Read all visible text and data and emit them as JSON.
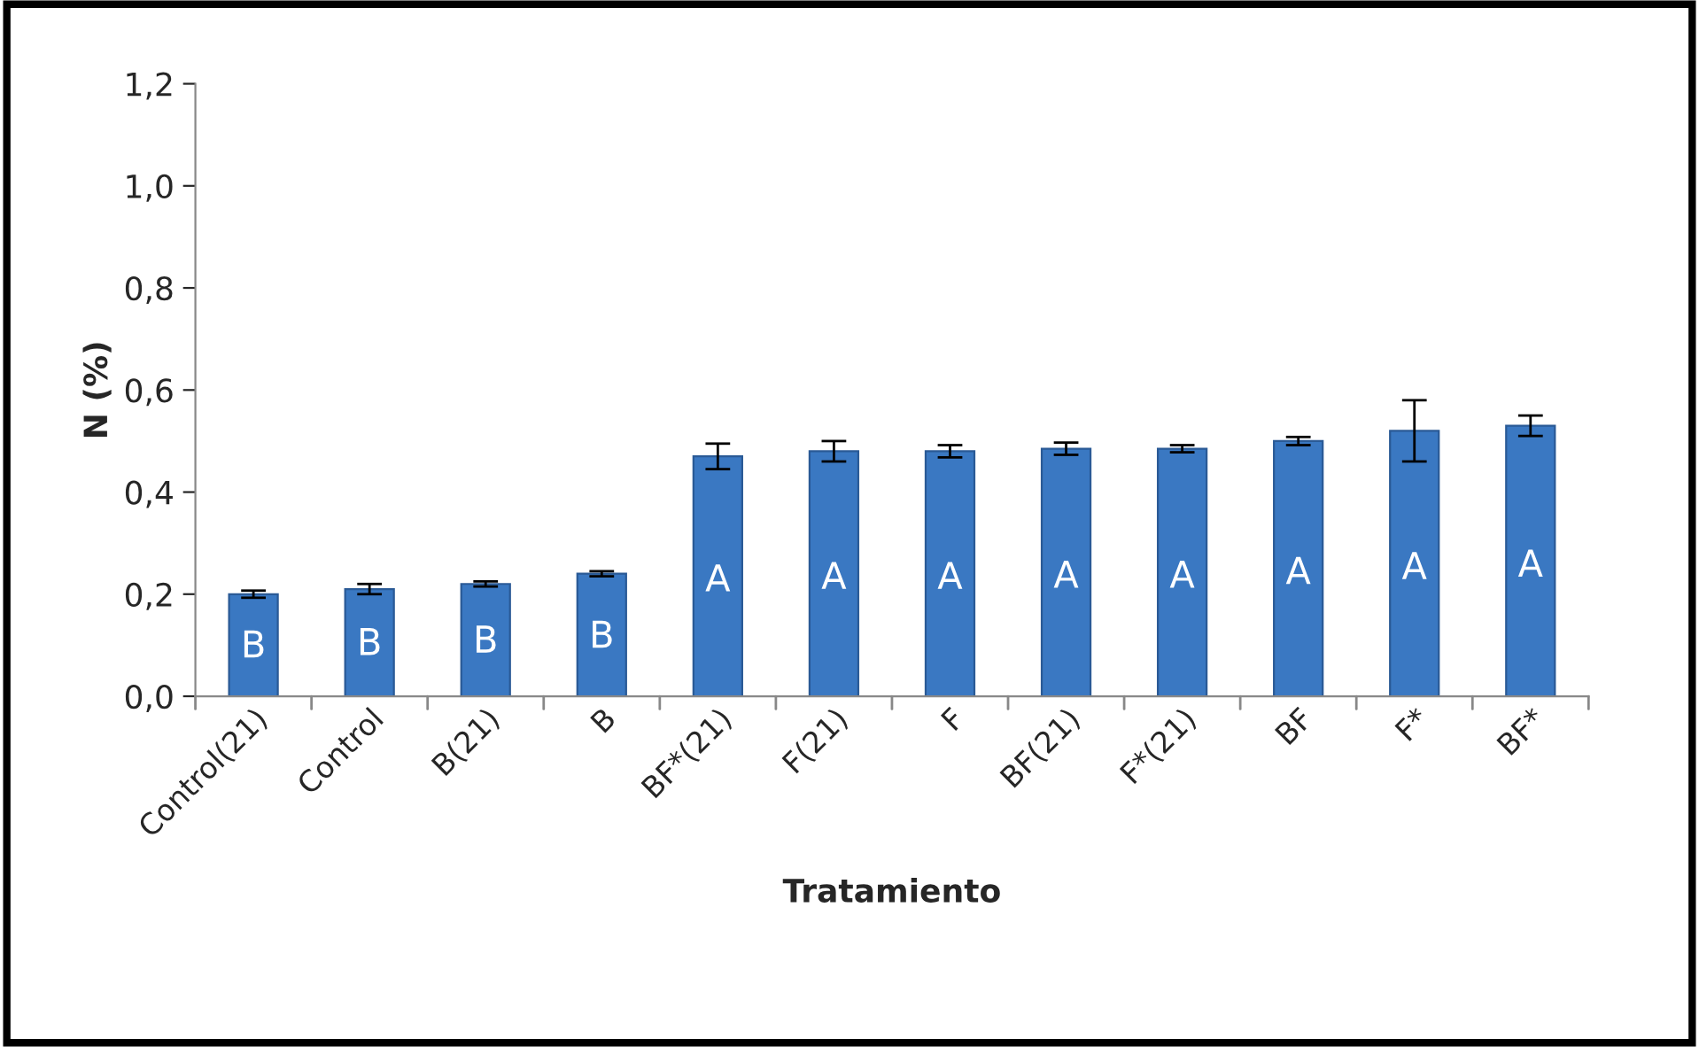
{
  "chart_data": {
    "type": "bar",
    "xlabel": "Tratamiento",
    "ylabel": "N (%)",
    "categories": [
      "Control(21)",
      "Control",
      "B(21)",
      "B",
      "BF*(21)",
      "F(21)",
      "F",
      "BF(21)",
      "F*(21)",
      "BF",
      "F*",
      "BF*"
    ],
    "series": [
      {
        "color": "#3a78c2",
        "values": [
          0.2,
          0.21,
          0.22,
          0.24,
          0.47,
          0.48,
          0.48,
          0.485,
          0.485,
          0.5,
          0.52,
          0.53
        ],
        "errors": [
          0.007,
          0.01,
          0.005,
          0.005,
          0.025,
          0.02,
          0.012,
          0.012,
          0.007,
          0.008,
          0.06,
          0.02
        ]
      }
    ],
    "ylim": [
      0,
      1.2
    ],
    "yticks": [
      {
        "value": 0,
        "label": "0,0"
      },
      {
        "value": 0.2,
        "label": "0,2"
      },
      {
        "value": 0.4,
        "label": "0,4"
      },
      {
        "value": 0.6,
        "label": "0,6"
      },
      {
        "value": 0.8,
        "label": "0,8"
      },
      {
        "value": 1.0,
        "label": "1,0"
      },
      {
        "value": 1.2,
        "label": "1,2"
      }
    ],
    "grid": false,
    "annotations": [
      "B",
      "B",
      "B",
      "B",
      "A",
      "A",
      "A",
      "A",
      "A",
      "A",
      "A",
      "A"
    ]
  }
}
